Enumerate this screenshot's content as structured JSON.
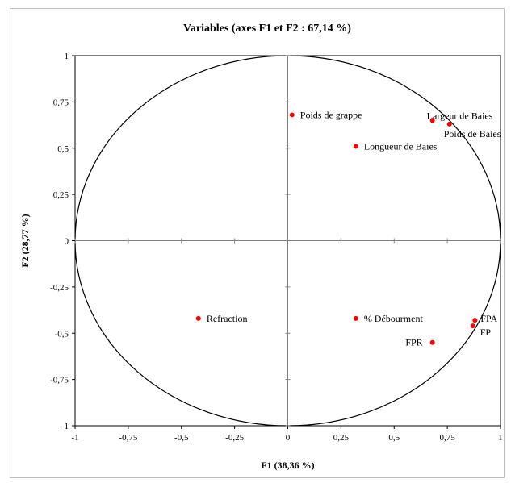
{
  "chart_data": {
    "type": "scatter",
    "title": "Variables (axes F1 et F2 : 67,14 %)",
    "xlabel": "F1 (38,36 %)",
    "ylabel": "F2 (28,77 %)",
    "xlim": [
      -1,
      1
    ],
    "ylim": [
      -1,
      1
    ],
    "x_ticks": [
      "-1",
      "-0,75",
      "-0,5",
      "-0,25",
      "0",
      "0,25",
      "0,5",
      "0,75",
      "1"
    ],
    "y_ticks": [
      "1",
      "0,75",
      "0,5",
      "0,25",
      "0",
      "-0,25",
      "-0,5",
      "-0,75",
      "-1"
    ],
    "grid": false,
    "correlation_circle": true,
    "point_color": "#ff0000",
    "points": [
      {
        "label": "Poids de grappe",
        "x": 0.02,
        "y": 0.68
      },
      {
        "label": "Longueur de Baies",
        "x": 0.32,
        "y": 0.51
      },
      {
        "label": "Largeur de Baies",
        "x": 0.68,
        "y": 0.65
      },
      {
        "label": "Poids de Baies",
        "x": 0.76,
        "y": 0.63
      },
      {
        "label": "Refraction",
        "x": -0.42,
        "y": -0.42
      },
      {
        "label": "% Débourment",
        "x": 0.32,
        "y": -0.42
      },
      {
        "label": "FPR",
        "x": 0.68,
        "y": -0.55
      },
      {
        "label": "FPA",
        "x": 0.88,
        "y": -0.43
      },
      {
        "label": "FP",
        "x": 0.87,
        "y": -0.46
      }
    ]
  }
}
